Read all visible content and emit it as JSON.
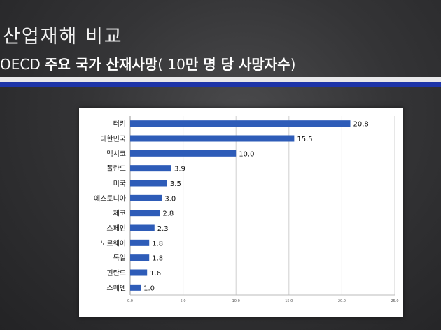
{
  "slide": {
    "title": "산업재해 비교",
    "subtitle_part1": "OECD ",
    "subtitle_part2": "주요 국가 산재사망",
    "subtitle_part3": "( 10",
    "subtitle_part4": "만 명 당 사망자수",
    "subtitle_part5": ")",
    "accent_color": "#1d34a8"
  },
  "chart_data": {
    "type": "bar",
    "orientation": "horizontal",
    "categories": [
      "터키",
      "대한민국",
      "멕시코",
      "폴란드",
      "미국",
      "에스토니아",
      "체코",
      "스페인",
      "노르웨이",
      "독일",
      "핀란드",
      "스웨덴"
    ],
    "values": [
      20.8,
      15.5,
      10.0,
      3.9,
      3.5,
      3.0,
      2.8,
      2.3,
      1.8,
      1.8,
      1.6,
      1.0
    ],
    "value_labels": [
      "20.8",
      "15.5",
      "10.0",
      "3.9",
      "3.5",
      "3.0",
      "2.8",
      "2.3",
      "1.8",
      "1.8",
      "1.6",
      "1.0"
    ],
    "xlim": [
      0,
      25
    ],
    "xticks": [
      0,
      5,
      10,
      15,
      20,
      25
    ],
    "xtick_labels": [
      "0.0",
      "5.0",
      "10.0",
      "15.0",
      "20.0",
      "25.0"
    ],
    "grid": true,
    "bar_color": "#2e5cb8"
  }
}
